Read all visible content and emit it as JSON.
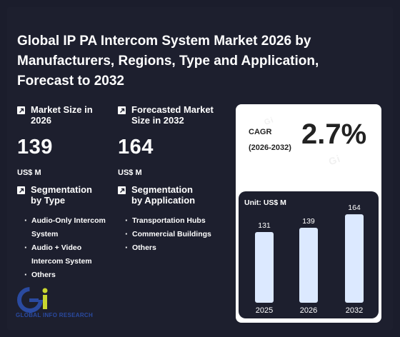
{
  "title": "Global IP PA Intercom System Market 2026 by Manufacturers, Regions, Type and Application, Forecast to 2032",
  "metrics": [
    {
      "label": "Market Size in 2026",
      "value": "139",
      "unit": "US$ M"
    },
    {
      "label": "Forecasted Market Size in 2032",
      "value": "164",
      "unit": "US$ M"
    }
  ],
  "segments": {
    "type": {
      "label": "Segmentation by Type",
      "items": [
        "Audio-Only Intercom System",
        "Audio + Video Intercom System",
        "Others"
      ]
    },
    "application": {
      "label": "Segmentation by Application",
      "items": [
        "Transportation Hubs",
        "Commercial Buildings",
        "Others"
      ]
    }
  },
  "cagr": {
    "label_line1": "CAGR",
    "label_line2": "(2026-2032)",
    "value": "2.7%"
  },
  "chart": {
    "unit_label": "Unit: US$ M"
  },
  "chart_data": {
    "type": "bar",
    "categories": [
      "2025",
      "2026",
      "2032"
    ],
    "values": [
      131,
      139,
      164
    ],
    "ylim": [
      0,
      180
    ],
    "bar_color": "#dce9ff",
    "grid": false
  },
  "logo": {
    "text": "GLOBAL INFO RESEARCH",
    "icon": "gi-logo-icon"
  },
  "colors": {
    "background": "#1d1f2e",
    "card": "#ffffff",
    "bar": "#dce9ff",
    "logo_blue": "#2a4aa0",
    "logo_yellow": "#c8d630"
  }
}
